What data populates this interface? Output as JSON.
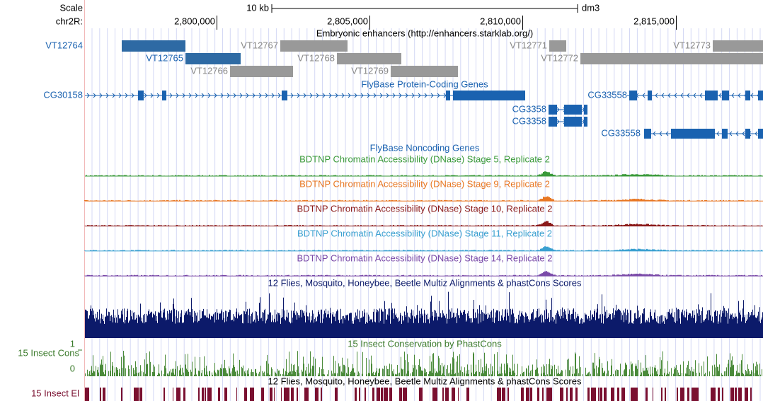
{
  "scale": {
    "label": "Scale",
    "size": "10 kb",
    "assembly": "dm3"
  },
  "position": {
    "chrom": "chr2R:",
    "ticks": [
      "2,800,000",
      "2,805,000",
      "2,810,000",
      "2,815,000"
    ]
  },
  "enhancers": {
    "title": "Embryonic enhancers (http://enhancers.starklab.org/)",
    "items": [
      "VT12764",
      "VT12765",
      "VT12766",
      "VT12767",
      "VT12768",
      "VT12769",
      "VT12771",
      "VT12772",
      "VT12773"
    ]
  },
  "genes": {
    "title": "FlyBase Protein-Coding Genes",
    "items": [
      "CG30158",
      "CG3358",
      "CG3358",
      "CG33558",
      "CG33558"
    ]
  },
  "noncoding": {
    "title": "FlyBase Noncoding Genes"
  },
  "dnase": [
    "BDTNP Chromatin Accessibility (DNase) Stage 5, Replicate 2",
    "BDTNP Chromatin Accessibility (DNase) Stage 9, Replicate 2",
    "BDTNP Chromatin Accessibility (DNase) Stage 10, Replicate 2",
    "BDTNP Chromatin Accessibility (DNase) Stage 11, Replicate 2",
    "BDTNP Chromatin Accessibility (DNase) Stage 14, Replicate 2"
  ],
  "multiz": {
    "title": "12 Flies, Mosquito, Honeybee, Beetle Multiz Alignments & phastCons Scores"
  },
  "cons": {
    "label": "15 Insect Cons",
    "title": "15 Insect Conservation by PhastCons",
    "ylim": [
      0,
      1
    ]
  },
  "elements": {
    "title": "12 Flies, Mosquito, Honeybee, Beetle Multiz Alignments & phastCons Scores",
    "label": "15 Insect El"
  }
}
